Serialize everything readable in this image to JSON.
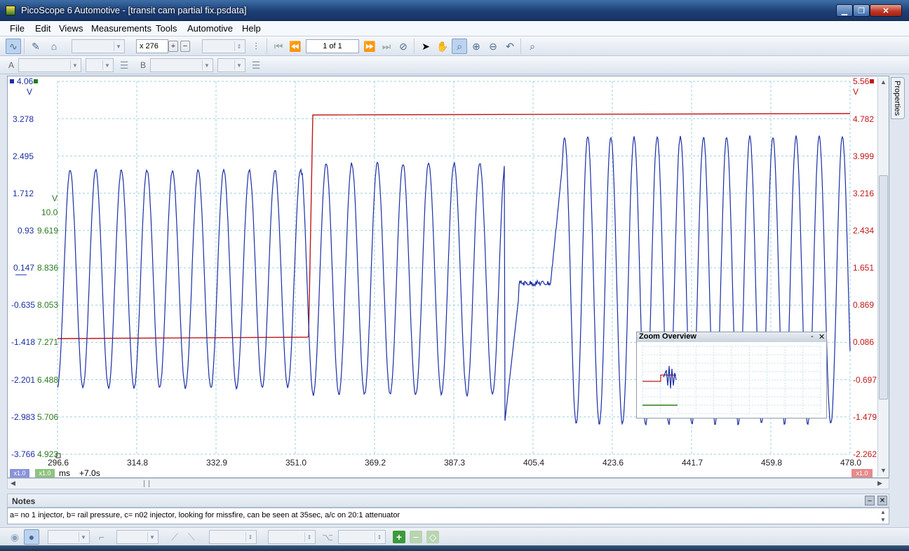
{
  "window": {
    "title": "PicoScope 6 Automotive - [transit cam partial fix.psdata]",
    "minimize_icon": "minimize-icon",
    "maximize_icon": "restore-icon",
    "close_label": "✕"
  },
  "menu": [
    "File",
    "Edit",
    "Views",
    "Measurements",
    "Tools",
    "Automotive",
    "Help"
  ],
  "toolbar": {
    "zoom_value": "x 276",
    "buffer_page": "1 of 1",
    "channel_a_label": "A",
    "channel_b_label": "B"
  },
  "scope": {
    "left_axis_top": "4.06",
    "left_axis_unit": "V",
    "right_axis_top": "5.56",
    "right_axis_unit": "V",
    "green_axis_unit": "V",
    "blue_ticks": [
      "3.278",
      "2.495",
      "1.712",
      "0.93",
      "0.147",
      "-0.635",
      "-1.418",
      "-2.201",
      "-2.983",
      "-3.766"
    ],
    "green_ticks": [
      "10.0",
      "9.619",
      "8.836",
      "8.053",
      "7.271",
      "6.488",
      "5.706",
      "4.923"
    ],
    "red_ticks": [
      "4.782",
      "3.999",
      "3.216",
      "2.434",
      "1.651",
      "0.869",
      "0.086",
      "-0.697",
      "-1.479",
      "-2.262"
    ],
    "x_ticks": [
      "296.6",
      "314.8",
      "332.9",
      "351.0",
      "369.2",
      "387.3",
      "405.4",
      "423.6",
      "441.7",
      "459.8",
      "478.0"
    ],
    "x_unit": "ms",
    "x_offset": "+7.0s",
    "chip_a": "x1.0",
    "chip_b": "x1.0",
    "chip_c": "x1.0",
    "colors": {
      "channel_a": "#1a2ea5",
      "channel_b": "#2a7a1f",
      "channel_c": "#c01818",
      "grid": "#9ccfe0"
    }
  },
  "zoom_overview": {
    "title": "Zoom Overview"
  },
  "properties_tab": "Properties",
  "notes": {
    "title": "Notes",
    "text": "a= no 1 injector, b= rail pressure, c= n02 injector, looking for missfire, can be seen at 35sec, a/c on 20:1 attenuator"
  }
}
